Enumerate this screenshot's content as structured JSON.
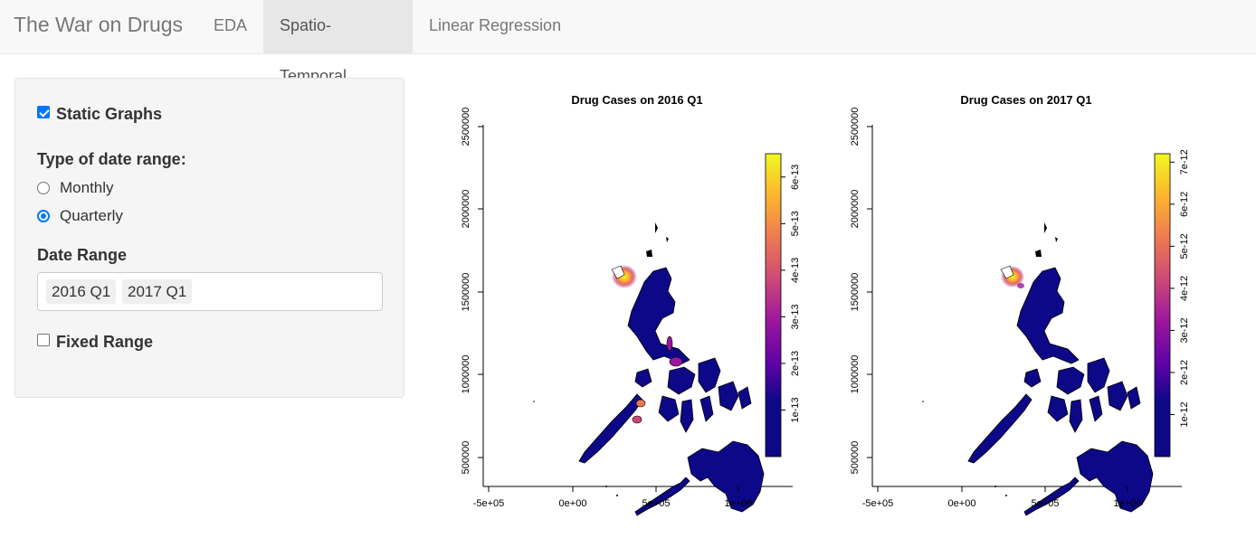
{
  "navbar": {
    "brand": "The War on Drugs",
    "tabs": [
      {
        "label": "EDA",
        "active": false
      },
      {
        "label": "Spatio-Temporal",
        "active": true
      },
      {
        "label": "Linear Regression",
        "active": false
      }
    ]
  },
  "sidebar": {
    "static_graphs": {
      "label": "Static Graphs",
      "checked": true
    },
    "date_type": {
      "heading": "Type of date range:",
      "options": [
        {
          "label": "Monthly",
          "selected": false
        },
        {
          "label": "Quarterly",
          "selected": true
        }
      ]
    },
    "date_range": {
      "heading": "Date Range",
      "values": [
        "2016 Q1",
        "2017 Q1"
      ]
    },
    "fixed_range": {
      "label": "Fixed Range",
      "checked": false
    }
  },
  "colors": {
    "accent": "#0075ff",
    "map_low": "#0d0887",
    "map_high": "#f0f921"
  },
  "chart_data": [
    {
      "type": "heatmap",
      "title": "Drug Cases on 2016 Q1",
      "x_ticks": [
        "-5e+05",
        "0e+00",
        "5e+05",
        "1e+06"
      ],
      "y_ticks": [
        "500000",
        "1000000",
        "1500000",
        "2000000",
        "2500000"
      ],
      "colorbar_ticks": [
        "1e-13",
        "2e-13",
        "3e-13",
        "4e-13",
        "5e-13",
        "6e-13"
      ],
      "colorbar_range": [
        0,
        6.5e-13
      ]
    },
    {
      "type": "heatmap",
      "title": "Drug Cases on 2017 Q1",
      "x_ticks": [
        "-5e+05",
        "0e+00",
        "5e+05",
        "1e+06"
      ],
      "y_ticks": [
        "500000",
        "1000000",
        "1500000",
        "2000000",
        "2500000"
      ],
      "colorbar_ticks": [
        "1e-12",
        "2e-12",
        "3e-12",
        "4e-12",
        "5e-12",
        "6e-12",
        "7e-12"
      ],
      "colorbar_range": [
        0,
        7.2e-12
      ]
    }
  ]
}
